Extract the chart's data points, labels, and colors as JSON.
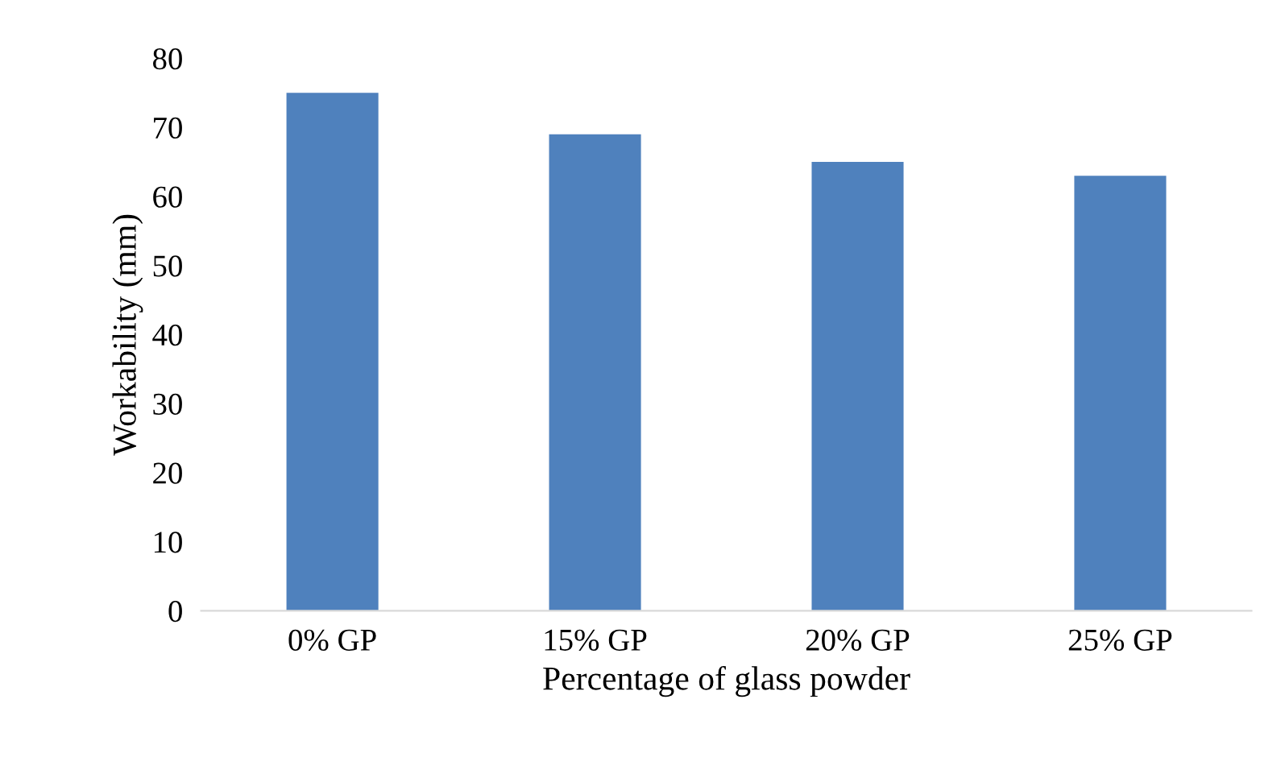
{
  "chart_data": {
    "type": "bar",
    "xlabel": "Percentage of glass powder",
    "ylabel": "Workability (mm)",
    "categories": [
      "0% GP",
      "15% GP",
      "20% GP",
      "25% GP"
    ],
    "values": [
      75,
      69,
      65,
      63
    ],
    "color": "#4f81bd",
    "ylim": [
      0,
      80
    ],
    "yticks": [
      0,
      10,
      20,
      30,
      40,
      50,
      60,
      70,
      80
    ],
    "grid": false,
    "legend": false
  }
}
